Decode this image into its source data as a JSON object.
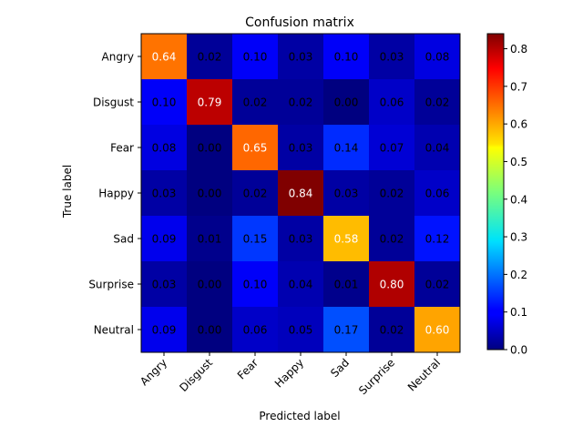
{
  "chart_data": {
    "type": "heatmap",
    "title": "Confusion matrix",
    "xlabel": "Predicted label",
    "ylabel": "True label",
    "x_categories": [
      "Angry",
      "Disgust",
      "Fear",
      "Happy",
      "Sad",
      "Surprise",
      "Neutral"
    ],
    "y_categories": [
      "Angry",
      "Disgust",
      "Fear",
      "Happy",
      "Sad",
      "Surprise",
      "Neutral"
    ],
    "values": [
      [
        0.64,
        0.02,
        0.1,
        0.03,
        0.1,
        0.03,
        0.08
      ],
      [
        0.1,
        0.79,
        0.02,
        0.02,
        0.0,
        0.06,
        0.02
      ],
      [
        0.08,
        0.0,
        0.65,
        0.03,
        0.14,
        0.07,
        0.04
      ],
      [
        0.03,
        0.0,
        0.02,
        0.84,
        0.03,
        0.02,
        0.06
      ],
      [
        0.09,
        0.01,
        0.15,
        0.03,
        0.58,
        0.02,
        0.12
      ],
      [
        0.03,
        0.0,
        0.1,
        0.04,
        0.01,
        0.8,
        0.02
      ],
      [
        0.09,
        0.0,
        0.06,
        0.05,
        0.17,
        0.02,
        0.6
      ]
    ],
    "colormap": "jet",
    "colorbar": {
      "range": [
        0,
        0.84
      ],
      "ticks": [
        0.0,
        0.1,
        0.2,
        0.3,
        0.4,
        0.5,
        0.6,
        0.7,
        0.8
      ],
      "tick_labels": [
        "0.0",
        "0.1",
        "0.2",
        "0.3",
        "0.4",
        "0.5",
        "0.6",
        "0.7",
        "0.8"
      ]
    },
    "cell_text_threshold": 0.42,
    "cell_text_colors": {
      "high": "#ffffff",
      "low": "#000000"
    }
  }
}
